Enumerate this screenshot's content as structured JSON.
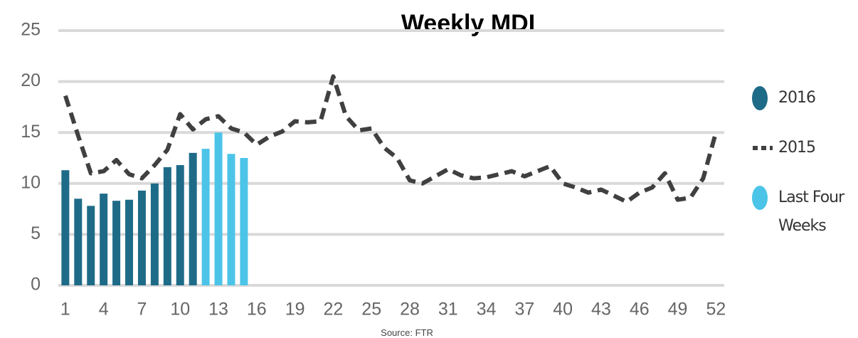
{
  "chart_data": {
    "type": "combo",
    "title": "Weekly MDI",
    "source": "Source: FTR",
    "xlim": [
      0.45,
      52.65
    ],
    "xticks": [
      1,
      4,
      7,
      10,
      13,
      16,
      19,
      22,
      25,
      28,
      31,
      34,
      37,
      40,
      43,
      46,
      49,
      52
    ],
    "ylim": [
      0,
      25
    ],
    "yticks": [
      0,
      5,
      10,
      15,
      20,
      25
    ],
    "grid": true,
    "legend": "right",
    "series": [
      {
        "name": "2016",
        "type": "bar",
        "color": "#1e6b88",
        "x": [
          1,
          2,
          3,
          4,
          5,
          6,
          7,
          8,
          9,
          10,
          11
        ],
        "values": [
          11.3,
          8.5,
          7.8,
          9.0,
          8.3,
          8.4,
          9.3,
          10.0,
          11.6,
          11.8,
          13.0
        ]
      },
      {
        "name": "2015",
        "type": "line",
        "color": "#404040",
        "x": [
          1,
          2,
          3,
          4,
          5,
          6,
          7,
          8,
          9,
          10,
          11,
          12,
          13,
          14,
          15,
          16,
          17,
          18,
          19,
          20,
          21,
          22,
          23,
          24,
          25,
          26,
          27,
          28,
          29,
          30,
          31,
          32,
          33,
          34,
          35,
          36,
          37,
          38,
          39,
          40,
          41,
          42,
          43,
          44,
          45,
          46,
          47,
          48,
          49,
          50,
          51,
          52
        ],
        "values": [
          18.6,
          14.7,
          11.0,
          11.2,
          12.3,
          10.9,
          10.5,
          11.8,
          13.3,
          16.8,
          15.3,
          16.3,
          16.6,
          15.4,
          15.0,
          13.8,
          14.6,
          15.1,
          16.1,
          16.0,
          16.1,
          20.5,
          16.6,
          15.2,
          15.4,
          13.5,
          12.5,
          10.3,
          10.0,
          10.7,
          11.4,
          10.8,
          10.5,
          10.6,
          10.9,
          11.2,
          10.7,
          11.2,
          11.7,
          10.0,
          9.6,
          9.1,
          9.4,
          8.8,
          8.2,
          9.1,
          9.6,
          11.0,
          8.4,
          8.6,
          10.5,
          15.0
        ]
      },
      {
        "name": "Last Four Weeks",
        "type": "bar",
        "color": "#4cc4e8",
        "x": [
          12,
          13,
          14,
          15
        ],
        "values": [
          13.4,
          15.0,
          12.9,
          12.5
        ]
      }
    ]
  }
}
